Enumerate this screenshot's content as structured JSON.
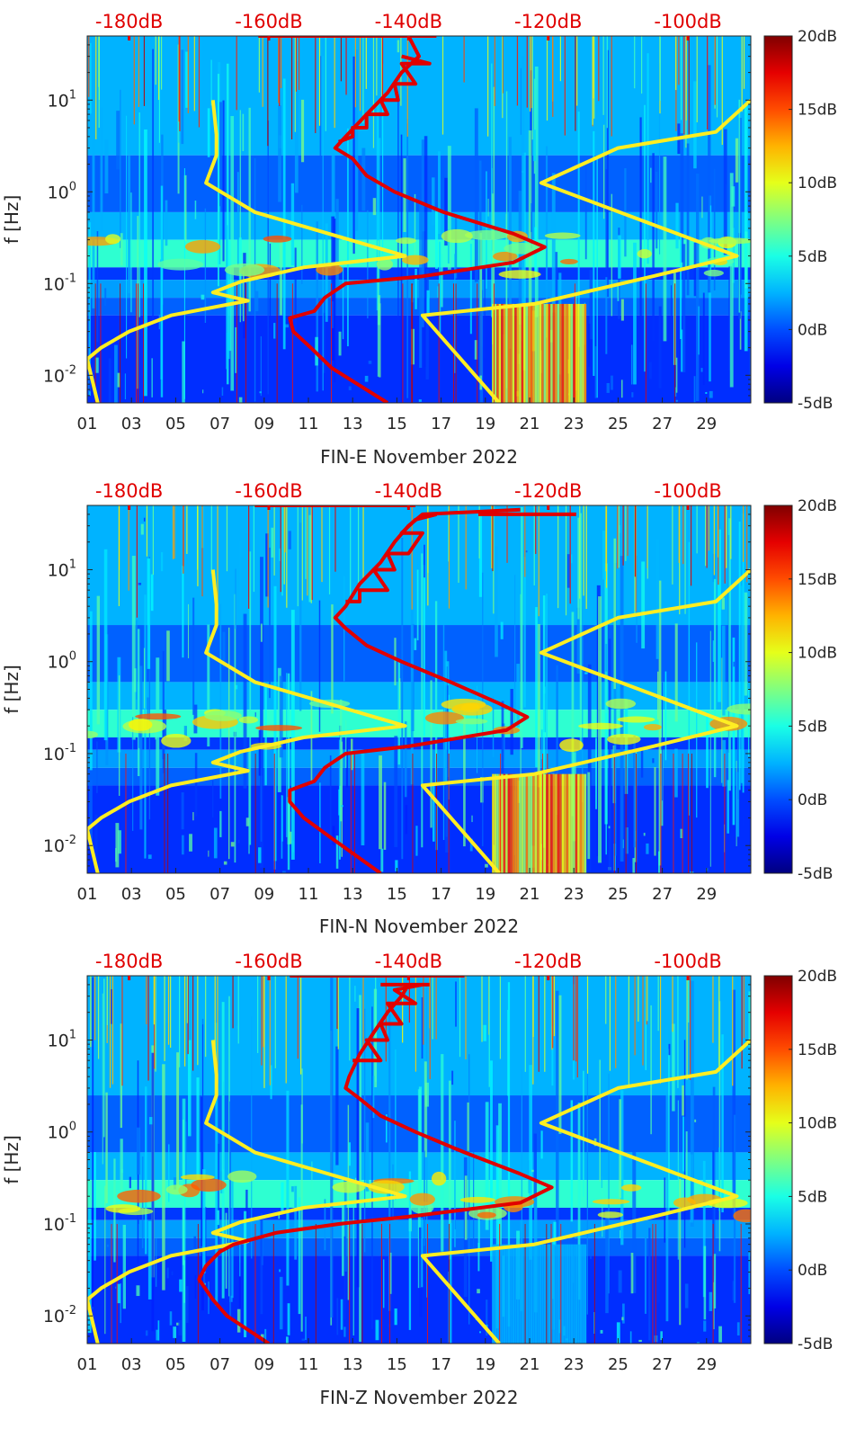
{
  "chart_data": [
    {
      "type": "heatmap",
      "xlabel": "FIN-E November 2022",
      "ylabel": "f [Hz]",
      "x_tick_labels": [
        "01",
        "03",
        "05",
        "07",
        "09",
        "11",
        "13",
        "15",
        "17",
        "19",
        "21",
        "23",
        "25",
        "27",
        "29"
      ],
      "x_ticks_day": [
        1,
        3,
        5,
        7,
        9,
        11,
        13,
        15,
        17,
        19,
        21,
        23,
        25,
        27,
        29
      ],
      "xlim_day": [
        1,
        31
      ],
      "y_scale": "log",
      "ylim": [
        0.005,
        50
      ],
      "y_ticks": [
        0.01,
        0.1,
        1,
        10
      ],
      "y_tick_labels": [
        {
          "base": "10",
          "exp": "-2"
        },
        {
          "base": "10",
          "exp": "-1"
        },
        {
          "base": "10",
          "exp": "0"
        },
        {
          "base": "10",
          "exp": "1"
        }
      ],
      "colorbar": {
        "colormap": "jet",
        "range": [
          -5,
          20
        ],
        "tick_values": [
          -5,
          0,
          5,
          10,
          15,
          20
        ],
        "tick_labels": [
          "-5dB",
          "0dB",
          "5dB",
          "10dB",
          "15dB",
          "20dB"
        ]
      },
      "top_axis": {
        "color": "#e00000",
        "tick_labels": [
          "-180dB",
          "-160dB",
          "-140dB",
          "-120dB",
          "-100dB"
        ],
        "tick_values": [
          -180,
          -160,
          -140,
          -120,
          -100
        ],
        "range": [
          -186,
          -91
        ]
      },
      "overlays": [
        {
          "color": "#ffee22",
          "points": [
            [
              10,
              -168
            ],
            [
              4.2,
              -167.5
            ],
            [
              2.5,
              -167.5
            ],
            [
              1.25,
              -169
            ],
            [
              0.6,
              -162
            ],
            [
              0.2,
              -140.5
            ],
            [
              0.15,
              -155
            ],
            [
              0.105,
              -164
            ],
            [
              0.08,
              -168
            ],
            [
              0.065,
              -163
            ],
            [
              0.045,
              -174
            ],
            [
              0.03,
              -180
            ],
            [
              0.02,
              -184
            ],
            [
              0.015,
              -186
            ],
            [
              0.005,
              -184.5
            ]
          ]
        },
        {
          "color": "#ffee22",
          "points": [
            [
              10,
              -91
            ],
            [
              4.5,
              -96
            ],
            [
              3,
              -110
            ],
            [
              1.25,
              -121
            ],
            [
              0.2,
              -93
            ],
            [
              0.12,
              -105
            ],
            [
              0.06,
              -122
            ],
            [
              0.045,
              -138
            ],
            [
              0.005,
              -127
            ]
          ]
        },
        {
          "color": "#e00000",
          "points": [
            [
              50,
              -140
            ],
            [
              30,
              -138.5
            ],
            [
              20,
              -141
            ],
            [
              12,
              -143
            ],
            [
              7,
              -146
            ],
            [
              4,
              -149
            ],
            [
              3,
              -150.5
            ],
            [
              2.3,
              -148
            ],
            [
              1.5,
              -146
            ],
            [
              1,
              -142
            ],
            [
              0.6,
              -135
            ],
            [
              0.35,
              -125
            ],
            [
              0.25,
              -120.5
            ],
            [
              0.17,
              -125
            ],
            [
              0.12,
              -138
            ],
            [
              0.1,
              -149
            ],
            [
              0.07,
              -152
            ],
            [
              0.05,
              -153.5
            ],
            [
              0.042,
              -157
            ],
            [
              0.03,
              -156.5
            ],
            [
              0.02,
              -154
            ],
            [
              0.012,
              -151
            ],
            [
              0.005,
              -143
            ]
          ]
        },
        {
          "color": "#e00000",
          "points": [
            [
              30,
              -141
            ],
            [
              25,
              -137
            ],
            [
              25,
              -141
            ],
            [
              15,
              -139
            ],
            [
              15,
              -142
            ],
            [
              10,
              -141.5
            ],
            [
              10,
              -144
            ],
            [
              7,
              -143
            ],
            [
              7,
              -146
            ],
            [
              5,
              -146
            ],
            [
              5,
              -148
            ],
            [
              4,
              -148
            ],
            [
              3.5,
              -150
            ]
          ]
        },
        {
          "color": "#e00000",
          "points": [
            [
              50,
              -161.5
            ],
            [
              50,
              -136
            ]
          ]
        }
      ]
    },
    {
      "type": "heatmap",
      "xlabel": "FIN-N November 2022",
      "ylabel": "f [Hz]",
      "x_tick_labels": [
        "01",
        "03",
        "05",
        "07",
        "09",
        "11",
        "13",
        "15",
        "17",
        "19",
        "21",
        "23",
        "25",
        "27",
        "29"
      ],
      "x_ticks_day": [
        1,
        3,
        5,
        7,
        9,
        11,
        13,
        15,
        17,
        19,
        21,
        23,
        25,
        27,
        29
      ],
      "xlim_day": [
        1,
        31
      ],
      "y_scale": "log",
      "ylim": [
        0.005,
        50
      ],
      "y_ticks": [
        0.01,
        0.1,
        1,
        10
      ],
      "y_tick_labels": [
        {
          "base": "10",
          "exp": "-2"
        },
        {
          "base": "10",
          "exp": "-1"
        },
        {
          "base": "10",
          "exp": "0"
        },
        {
          "base": "10",
          "exp": "1"
        }
      ],
      "colorbar": {
        "colormap": "jet",
        "range": [
          -5,
          20
        ],
        "tick_values": [
          -5,
          0,
          5,
          10,
          15,
          20
        ],
        "tick_labels": [
          "-5dB",
          "0dB",
          "5dB",
          "10dB",
          "15dB",
          "20dB"
        ]
      },
      "top_axis": {
        "color": "#e00000",
        "tick_labels": [
          "-180dB",
          "-160dB",
          "-140dB",
          "-120dB",
          "-100dB"
        ],
        "tick_values": [
          -180,
          -160,
          -140,
          -120,
          -100
        ],
        "range": [
          -186,
          -91
        ]
      },
      "overlays": [
        {
          "color": "#ffee22",
          "points": [
            [
              10,
              -168
            ],
            [
              4.2,
              -167.5
            ],
            [
              2.5,
              -167.5
            ],
            [
              1.25,
              -169
            ],
            [
              0.6,
              -162
            ],
            [
              0.2,
              -140.5
            ],
            [
              0.15,
              -155
            ],
            [
              0.105,
              -164
            ],
            [
              0.08,
              -168
            ],
            [
              0.065,
              -163
            ],
            [
              0.045,
              -174
            ],
            [
              0.03,
              -180
            ],
            [
              0.02,
              -184
            ],
            [
              0.015,
              -186
            ],
            [
              0.005,
              -184.5
            ]
          ]
        },
        {
          "color": "#ffee22",
          "points": [
            [
              10,
              -91
            ],
            [
              4.5,
              -96
            ],
            [
              3,
              -110
            ],
            [
              1.25,
              -121
            ],
            [
              0.2,
              -93
            ],
            [
              0.12,
              -105
            ],
            [
              0.06,
              -122
            ],
            [
              0.045,
              -138
            ],
            [
              0.005,
              -127
            ]
          ]
        },
        {
          "color": "#e00000",
          "points": [
            [
              45,
              -124
            ],
            [
              40,
              -138
            ],
            [
              30,
              -140
            ],
            [
              20,
              -142
            ],
            [
              12,
              -144
            ],
            [
              7,
              -147
            ],
            [
              4,
              -149
            ],
            [
              3,
              -150.5
            ],
            [
              2.3,
              -149
            ],
            [
              1.5,
              -146
            ],
            [
              1,
              -141
            ],
            [
              0.6,
              -134
            ],
            [
              0.35,
              -127
            ],
            [
              0.25,
              -123
            ],
            [
              0.18,
              -126
            ],
            [
              0.12,
              -140
            ],
            [
              0.1,
              -149
            ],
            [
              0.07,
              -152
            ],
            [
              0.05,
              -153.5
            ],
            [
              0.04,
              -157
            ],
            [
              0.03,
              -157
            ],
            [
              0.02,
              -155
            ],
            [
              0.012,
              -151
            ],
            [
              0.005,
              -144
            ]
          ]
        },
        {
          "color": "#e00000",
          "points": [
            [
              40,
              -136
            ],
            [
              35,
              -139
            ],
            [
              25,
              -141
            ],
            [
              25,
              -138
            ],
            [
              15,
              -140
            ],
            [
              15,
              -143
            ],
            [
              10,
              -142
            ],
            [
              10,
              -145
            ],
            [
              6,
              -143
            ],
            [
              6,
              -147
            ],
            [
              4.5,
              -147
            ],
            [
              4.5,
              -149
            ]
          ]
        },
        {
          "color": "#e00000",
          "points": [
            [
              50,
              -162
            ],
            [
              50,
              -139
            ]
          ]
        },
        {
          "color": "#e00000",
          "points": [
            [
              40,
              -130
            ],
            [
              40,
              -116
            ]
          ]
        }
      ]
    },
    {
      "type": "heatmap",
      "xlabel": "FIN-Z November 2022",
      "ylabel": "f [Hz]",
      "x_tick_labels": [
        "01",
        "03",
        "05",
        "07",
        "09",
        "11",
        "13",
        "15",
        "17",
        "19",
        "21",
        "23",
        "25",
        "27",
        "29"
      ],
      "x_ticks_day": [
        1,
        3,
        5,
        7,
        9,
        11,
        13,
        15,
        17,
        19,
        21,
        23,
        25,
        27,
        29
      ],
      "xlim_day": [
        1,
        31
      ],
      "y_scale": "log",
      "ylim": [
        0.005,
        50
      ],
      "y_ticks": [
        0.01,
        0.1,
        1,
        10
      ],
      "y_tick_labels": [
        {
          "base": "10",
          "exp": "-2"
        },
        {
          "base": "10",
          "exp": "-1"
        },
        {
          "base": "10",
          "exp": "0"
        },
        {
          "base": "10",
          "exp": "1"
        }
      ],
      "colorbar": {
        "colormap": "jet",
        "range": [
          -5,
          20
        ],
        "tick_values": [
          -5,
          0,
          5,
          10,
          15,
          20
        ],
        "tick_labels": [
          "-5dB",
          "0dB",
          "5dB",
          "10dB",
          "15dB",
          "20dB"
        ]
      },
      "top_axis": {
        "color": "#e00000",
        "tick_labels": [
          "-180dB",
          "-160dB",
          "-140dB",
          "-120dB",
          "-100dB"
        ],
        "tick_values": [
          -180,
          -160,
          -140,
          -120,
          -100
        ],
        "range": [
          -186,
          -91
        ]
      },
      "overlays": [
        {
          "color": "#ffee22",
          "points": [
            [
              10,
              -168
            ],
            [
              4.2,
              -167.5
            ],
            [
              2.5,
              -167.5
            ],
            [
              1.25,
              -169
            ],
            [
              0.6,
              -162
            ],
            [
              0.2,
              -140.5
            ],
            [
              0.15,
              -155
            ],
            [
              0.105,
              -164
            ],
            [
              0.08,
              -168
            ],
            [
              0.065,
              -163
            ],
            [
              0.045,
              -174
            ],
            [
              0.03,
              -180
            ],
            [
              0.02,
              -184
            ],
            [
              0.015,
              -186
            ],
            [
              0.005,
              -184.5
            ]
          ]
        },
        {
          "color": "#ffee22",
          "points": [
            [
              10,
              -91
            ],
            [
              4.5,
              -96
            ],
            [
              3,
              -110
            ],
            [
              1.25,
              -121
            ],
            [
              0.2,
              -93
            ],
            [
              0.12,
              -105
            ],
            [
              0.06,
              -122
            ],
            [
              0.045,
              -138
            ],
            [
              0.005,
              -127
            ]
          ]
        },
        {
          "color": "#e00000",
          "points": [
            [
              40,
              -140
            ],
            [
              30,
              -141
            ],
            [
              20,
              -143
            ],
            [
              12,
              -145
            ],
            [
              7,
              -147
            ],
            [
              4,
              -148.5
            ],
            [
              3,
              -149
            ],
            [
              2.3,
              -147
            ],
            [
              1.5,
              -144
            ],
            [
              1,
              -139
            ],
            [
              0.6,
              -132
            ],
            [
              0.35,
              -124
            ],
            [
              0.25,
              -119.5
            ],
            [
              0.17,
              -124
            ],
            [
              0.12,
              -140
            ],
            [
              0.1,
              -150
            ],
            [
              0.08,
              -159
            ],
            [
              0.06,
              -165
            ],
            [
              0.05,
              -167
            ],
            [
              0.035,
              -169
            ],
            [
              0.025,
              -170
            ],
            [
              0.015,
              -168
            ],
            [
              0.01,
              -166
            ],
            [
              0.005,
              -160
            ]
          ]
        },
        {
          "color": "#e00000",
          "points": [
            [
              40,
              -138
            ],
            [
              35,
              -142
            ],
            [
              25,
              -139
            ],
            [
              25,
              -143
            ],
            [
              15,
              -141
            ],
            [
              15,
              -144
            ],
            [
              10,
              -143
            ],
            [
              10,
              -146
            ],
            [
              6,
              -144
            ],
            [
              6,
              -148
            ]
          ]
        },
        {
          "color": "#e00000",
          "points": [
            [
              50,
              -157
            ],
            [
              50,
              -132
            ]
          ]
        },
        {
          "color": "#e00000",
          "points": [
            [
              40,
              -144
            ],
            [
              40,
              -137
            ]
          ]
        }
      ]
    }
  ]
}
